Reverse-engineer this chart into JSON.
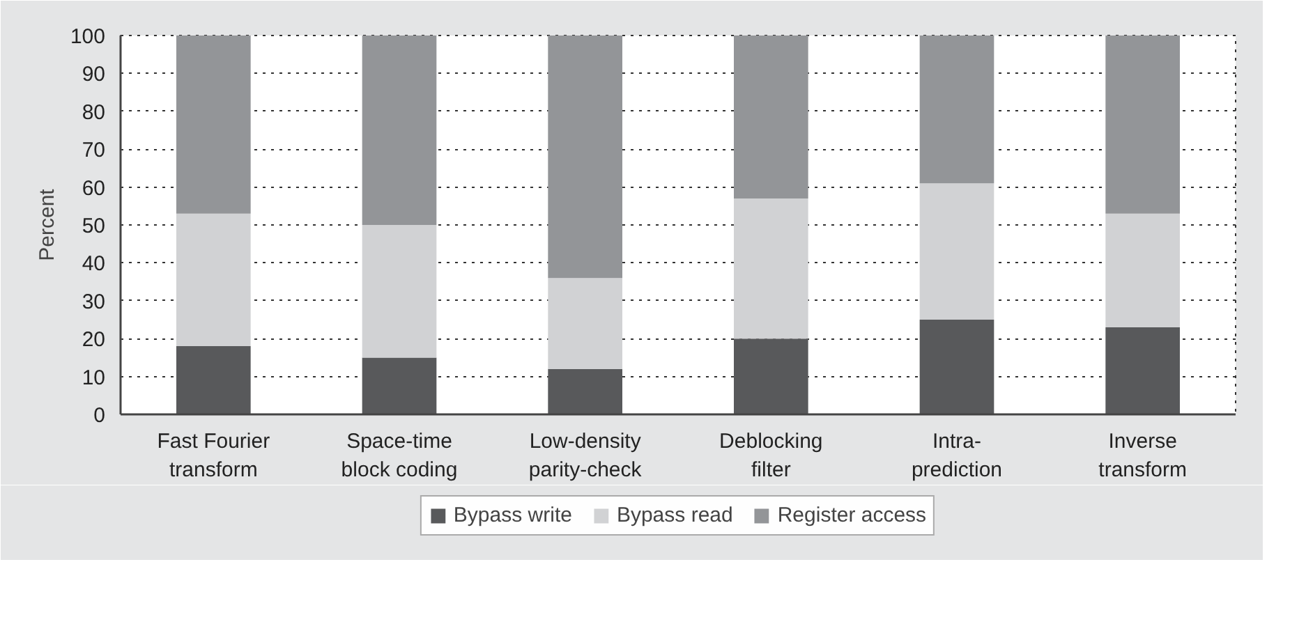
{
  "chart_data": {
    "type": "bar",
    "stacked": true,
    "ylabel": "Percent",
    "categories": [
      "Fast Fourier transform",
      "Space-time block coding",
      "Low-density parity-check",
      "Deblocking filter",
      "Intra-prediction",
      "Inverse transform"
    ],
    "series": [
      {
        "name": "Bypass write",
        "color": "#58595b",
        "values": [
          18,
          15,
          12,
          20,
          25,
          23
        ]
      },
      {
        "name": "Bypass read",
        "color": "#d1d2d4",
        "values": [
          35,
          35,
          24,
          37,
          36,
          30
        ]
      },
      {
        "name": "Register access",
        "color": "#939598",
        "values": [
          47,
          50,
          64,
          43,
          39,
          47
        ]
      }
    ],
    "ylim": [
      0,
      100
    ],
    "yticks": [
      0,
      10,
      20,
      30,
      40,
      50,
      60,
      70,
      80,
      90,
      100
    ],
    "grid": "y",
    "legend": "bottom"
  }
}
